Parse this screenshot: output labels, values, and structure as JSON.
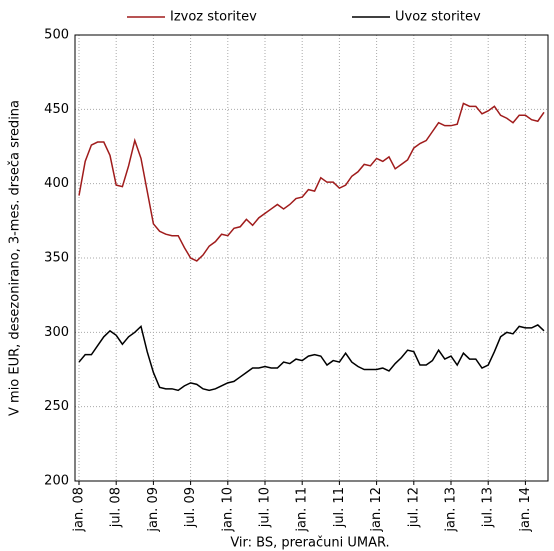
{
  "chart_data": {
    "type": "line",
    "y_label": "V mio EUR, desezonirano, 3-mes. drseča sredina",
    "source": "Vir: BS, preračuni UMAR.",
    "categories": [
      "jan. 08",
      null,
      null,
      null,
      null,
      null,
      "jul. 08",
      null,
      null,
      null,
      null,
      null,
      "jan. 09",
      null,
      null,
      null,
      null,
      null,
      "jul. 09",
      null,
      null,
      null,
      null,
      null,
      "jan. 10",
      null,
      null,
      null,
      null,
      null,
      "jul. 10",
      null,
      null,
      null,
      null,
      null,
      "jan. 11",
      null,
      null,
      null,
      null,
      null,
      "jul. 11",
      null,
      null,
      null,
      null,
      null,
      "jan. 12",
      null,
      null,
      null,
      null,
      null,
      "jul. 12",
      null,
      null,
      null,
      null,
      null,
      "jan. 13",
      null,
      null,
      null,
      null,
      null,
      "jul. 13",
      null,
      null,
      null,
      null,
      null,
      "jan. 14",
      null,
      null,
      null
    ],
    "series": [
      {
        "name": "Izvoz storitev",
        "color": "#a01c1c",
        "values": [
          392,
          415,
          426,
          428,
          428,
          419,
          399,
          398,
          412,
          429,
          417,
          395,
          373,
          368,
          366,
          365,
          365,
          357,
          350,
          348,
          352,
          358,
          361,
          366,
          365,
          370,
          371,
          376,
          372,
          377,
          380,
          383,
          386,
          383,
          386,
          390,
          391,
          396,
          395,
          404,
          401,
          401,
          397,
          399,
          405,
          408,
          413,
          412,
          417,
          415,
          418,
          410,
          413,
          416,
          424,
          427,
          429,
          435,
          441,
          439,
          439,
          440,
          454,
          452,
          452,
          447,
          449,
          452,
          446,
          444,
          441,
          446,
          446,
          443,
          442,
          448
        ]
      },
      {
        "name": "Uvoz storitev",
        "color": "#000000",
        "values": [
          280,
          285,
          285,
          291,
          297,
          301,
          298,
          292,
          297,
          300,
          304,
          287,
          273,
          263,
          262,
          262,
          261,
          264,
          266,
          265,
          262,
          261,
          262,
          264,
          266,
          267,
          270,
          273,
          276,
          276,
          277,
          276,
          276,
          280,
          279,
          282,
          281,
          284,
          285,
          284,
          278,
          281,
          280,
          286,
          280,
          277,
          275,
          275,
          275,
          276,
          274,
          279,
          283,
          288,
          287,
          278,
          278,
          281,
          288,
          282,
          284,
          278,
          286,
          282,
          282,
          276,
          278,
          287,
          297,
          300,
          299,
          304,
          303,
          303,
          305,
          301
        ]
      }
    ],
    "ylim": [
      200,
      500
    ],
    "yticks": [
      200,
      250,
      300,
      350,
      400,
      450,
      500
    ],
    "grid": true
  }
}
